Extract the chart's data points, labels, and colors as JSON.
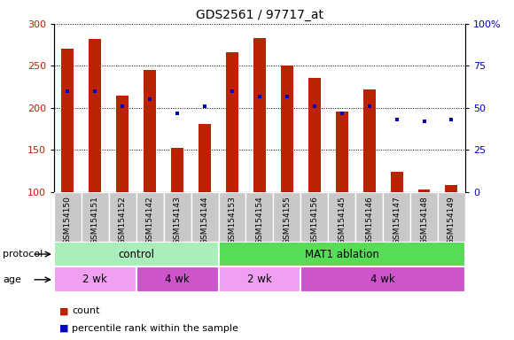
{
  "title": "GDS2561 / 97717_at",
  "samples": [
    "GSM154150",
    "GSM154151",
    "GSM154152",
    "GSM154142",
    "GSM154143",
    "GSM154144",
    "GSM154153",
    "GSM154154",
    "GSM154155",
    "GSM154156",
    "GSM154145",
    "GSM154146",
    "GSM154147",
    "GSM154148",
    "GSM154149"
  ],
  "counts": [
    270,
    282,
    215,
    245,
    153,
    181,
    266,
    283,
    250,
    236,
    196,
    222,
    124,
    103,
    108
  ],
  "percentiles_pct": [
    60,
    60,
    51,
    55,
    47,
    51,
    60,
    57,
    57,
    51,
    47,
    51,
    43,
    42,
    43
  ],
  "ylim_left": [
    100,
    300
  ],
  "ylim_right": [
    0,
    100
  ],
  "yticks_left": [
    100,
    150,
    200,
    250,
    300
  ],
  "yticks_right": [
    0,
    25,
    50,
    75,
    100
  ],
  "ytick_labels_right": [
    "0",
    "25",
    "50",
    "75",
    "100%"
  ],
  "bar_color": "#bb2200",
  "dot_color": "#0000bb",
  "sample_bg_color": "#c8c8c8",
  "protocol_labels": [
    {
      "text": "control",
      "start": 0,
      "end": 6,
      "color": "#aaeebb"
    },
    {
      "text": "MAT1 ablation",
      "start": 6,
      "end": 15,
      "color": "#55dd55"
    }
  ],
  "age_labels": [
    {
      "text": "2 wk",
      "start": 0,
      "end": 3,
      "color": "#f0a0f0"
    },
    {
      "text": "4 wk",
      "start": 3,
      "end": 6,
      "color": "#cc55cc"
    },
    {
      "text": "2 wk",
      "start": 6,
      "end": 9,
      "color": "#f0a0f0"
    },
    {
      "text": "4 wk",
      "start": 9,
      "end": 15,
      "color": "#cc55cc"
    }
  ],
  "protocol_arrow_label": "protocol",
  "age_arrow_label": "age"
}
